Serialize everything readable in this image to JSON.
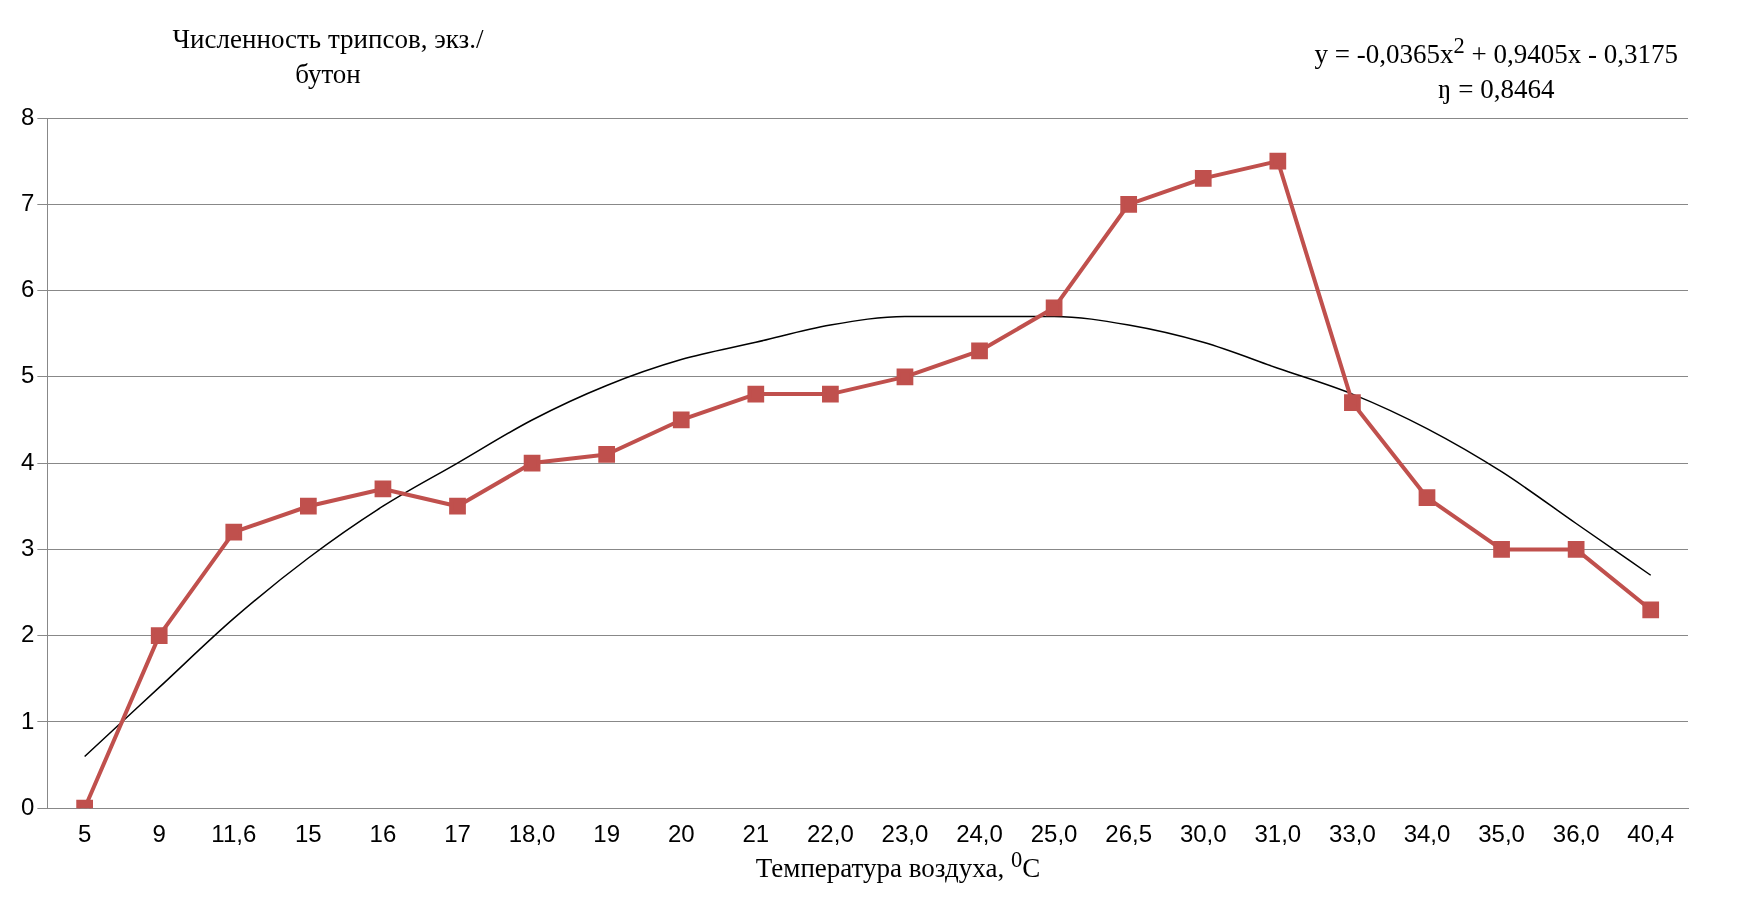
{
  "chart_data": {
    "type": "line",
    "ylabel": "Численность трипсов, экз./бутон",
    "xlabel": "Температура воздуха, $^{0}$C",
    "annotations": [
      "y = -0,0365x$^{2}$ + 0,9405x - 0,3175",
      "ŋ = 0,8464"
    ],
    "categories": [
      "5",
      "9",
      "11,6",
      "15",
      "16",
      "17",
      "18,0",
      "19",
      "20",
      "21",
      "22,0",
      "23,0",
      "24,0",
      "25,0",
      "26,5",
      "30,0",
      "31,0",
      "33,0",
      "34,0",
      "35,0",
      "36,0",
      "40,4"
    ],
    "series": [
      {
        "color": "#c0504d",
        "marker": "square",
        "values": [
          0,
          2,
          3.2,
          3.5,
          3.7,
          3.5,
          4,
          4.1,
          4.5,
          4.8,
          4.8,
          5,
          5.3,
          5.8,
          7,
          7.3,
          7.5,
          4.7,
          3.6,
          3,
          3,
          2.3
        ]
      },
      {
        "type": "line",
        "color": "#000000",
        "marker": "none",
        "values": [
          0.6,
          1.4,
          2.2,
          2.9,
          3.5,
          4.0,
          4.5,
          4.9,
          5.2,
          5.4,
          5.6,
          5.7,
          5.7,
          5.7,
          5.6,
          5.4,
          5.1,
          4.8,
          4.4,
          3.9,
          3.3,
          2.7
        ]
      }
    ],
    "ylim": [
      0,
      8
    ],
    "yticks": [
      0,
      1,
      2,
      3,
      4,
      5,
      6,
      7,
      8
    ],
    "grid": "y"
  }
}
